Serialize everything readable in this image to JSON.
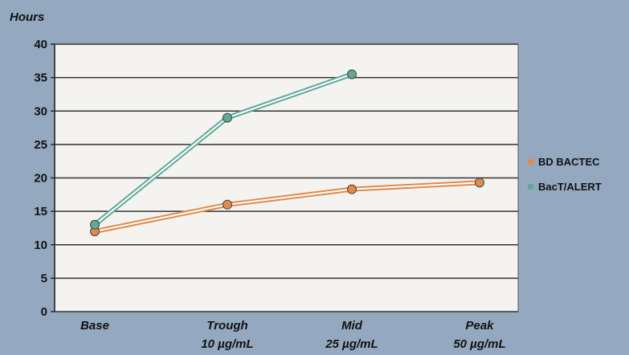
{
  "chart_data": {
    "type": "line",
    "title": "",
    "ylabel": "Hours",
    "xlabel": "",
    "ylim": [
      0,
      40
    ],
    "yticks": [
      0,
      5,
      10,
      15,
      20,
      25,
      30,
      35,
      40
    ],
    "grid": true,
    "legend_position": "right",
    "categories": [
      {
        "line1": "Base",
        "line2": ""
      },
      {
        "line1": "Trough",
        "line2": "10 µg/mL"
      },
      {
        "line1": "Mid",
        "line2": "25 µg/mL"
      },
      {
        "line1": "Peak",
        "line2": "50 µg/mL"
      }
    ],
    "series": [
      {
        "name": "BD BACTEC",
        "color": "#e08a4c",
        "values": [
          12,
          16,
          18.3,
          19.3
        ]
      },
      {
        "name": "BacT/ALERT",
        "color": "#5fa89a",
        "values": [
          13,
          29,
          35.5,
          null
        ]
      }
    ],
    "colors": {
      "background": "#94a9c0",
      "plot_area": "#f4f3ef",
      "grid": "#333333"
    }
  }
}
